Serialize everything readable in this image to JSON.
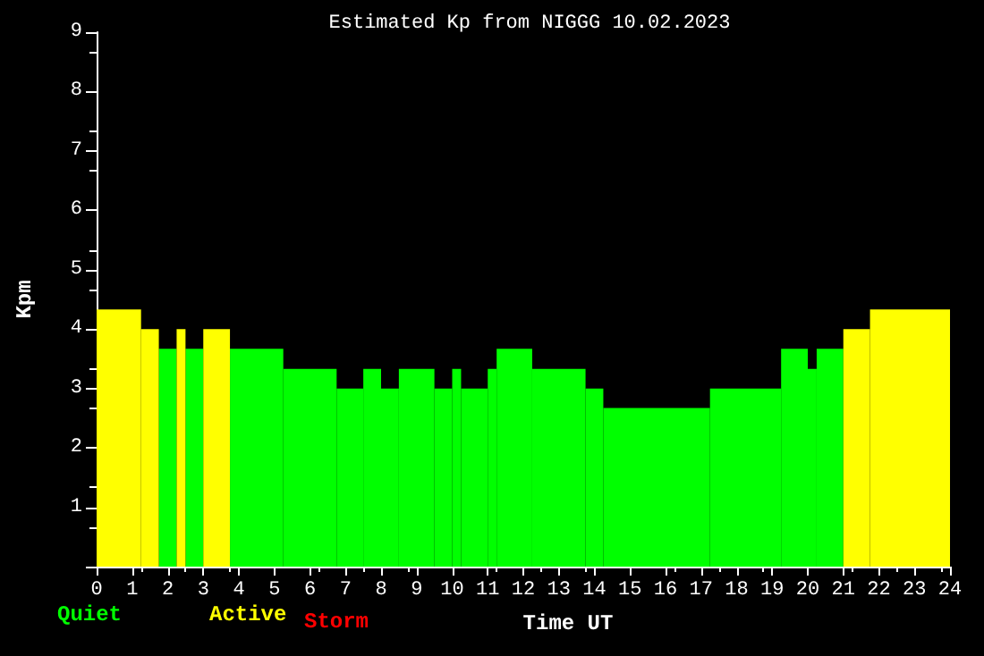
{
  "chart_data": {
    "type": "histogram",
    "title": "Estimated Kp from NIGGG 10.02.2023",
    "xlabel": "Time UT",
    "ylabel": "Kpm",
    "bins": [
      0,
      1.25,
      1.75,
      2.25,
      2.5,
      3,
      3.75,
      5.25,
      6.75,
      7.5,
      8,
      8.5,
      9.5,
      10,
      10.25,
      11,
      11.25,
      12.25,
      13.75,
      14.25,
      17.25,
      19.25,
      20,
      20.25,
      21,
      21.75,
      24
    ],
    "series": [
      {
        "name": "Quiet",
        "color": "#00ff00",
        "values": [
          null,
          null,
          3.67,
          null,
          3.67,
          null,
          3.67,
          3.33,
          3,
          3.33,
          3,
          3.33,
          3,
          3.33,
          3,
          3.33,
          3.67,
          3.33,
          3,
          2.67,
          3,
          3.67,
          3.33,
          3.67,
          null,
          null
        ]
      },
      {
        "name": "Active",
        "color": "#ffff00",
        "values": [
          4.33,
          4,
          null,
          4,
          null,
          4,
          null,
          null,
          null,
          null,
          null,
          null,
          null,
          null,
          null,
          null,
          null,
          null,
          null,
          null,
          null,
          null,
          null,
          null,
          4,
          4.33
        ]
      }
    ],
    "xlim": [
      0,
      24
    ],
    "xticks": [
      0,
      1,
      2,
      3,
      4,
      5,
      6,
      7,
      8,
      9,
      10,
      11,
      12,
      13,
      14,
      15,
      16,
      17,
      18,
      19,
      20,
      21,
      22,
      23,
      24
    ],
    "ylim": [
      0,
      9
    ],
    "yticks": [
      {
        "value": 0,
        "label": null
      },
      1,
      2,
      3,
      4,
      5,
      6,
      7,
      8,
      9
    ],
    "annotations": [
      "Storm"
    ],
    "legend": "bottom left",
    "grid": false
  }
}
